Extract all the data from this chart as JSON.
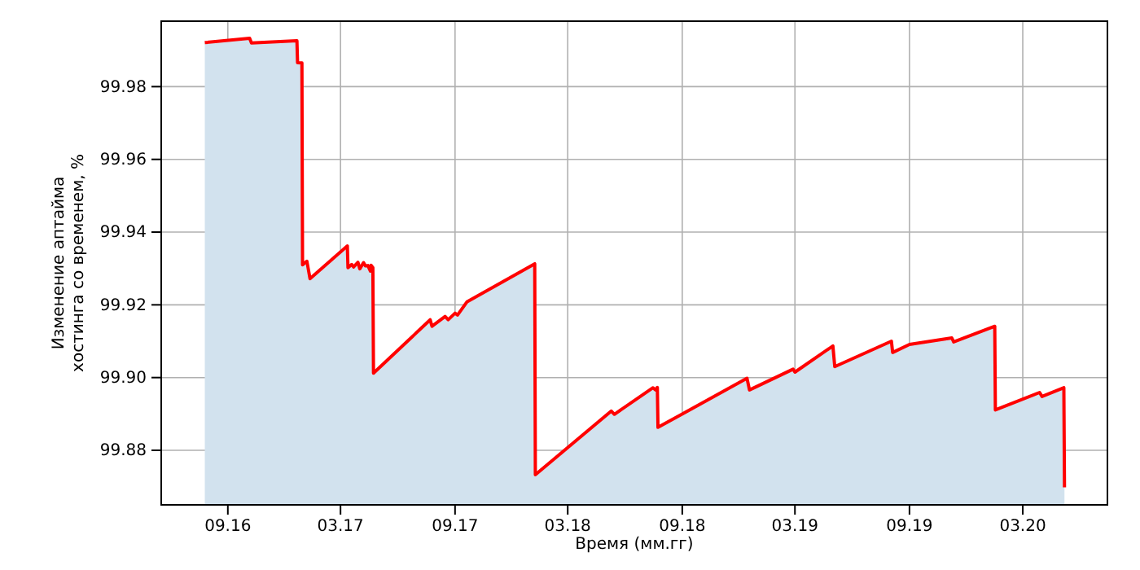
{
  "chart_data": {
    "type": "area",
    "xlabel": "Время (мм.гг)",
    "ylabel": "Изменение аптайма\nхостинга со временем, %",
    "xlim": [
      "2016-05-17",
      "2020-07-15"
    ],
    "ylim": [
      99.865,
      99.998
    ],
    "xticks": [
      {
        "value": "2016-09-01",
        "label": "09.16"
      },
      {
        "value": "2017-03-01",
        "label": "03.17"
      },
      {
        "value": "2017-09-01",
        "label": "09.17"
      },
      {
        "value": "2018-03-01",
        "label": "03.18"
      },
      {
        "value": "2018-09-01",
        "label": "09.18"
      },
      {
        "value": "2019-03-01",
        "label": "03.19"
      },
      {
        "value": "2019-09-01",
        "label": "09.19"
      },
      {
        "value": "2020-03-01",
        "label": "03.20"
      }
    ],
    "yticks": [
      {
        "value": 99.88,
        "label": "99.88"
      },
      {
        "value": 99.9,
        "label": "99.90"
      },
      {
        "value": 99.92,
        "label": "99.92"
      },
      {
        "value": 99.94,
        "label": "99.94"
      },
      {
        "value": 99.96,
        "label": "99.96"
      },
      {
        "value": 99.98,
        "label": "99.98"
      }
    ],
    "grid": true,
    "line_style": "solid",
    "x": [
      "2016-07-26",
      "2016-10-06",
      "2016-10-09",
      "2016-12-21",
      "2016-12-22",
      "2016-12-29",
      "2016-12-30",
      "2017-01-06",
      "2017-01-11",
      "2017-03-12",
      "2017-03-13",
      "2017-03-19",
      "2017-03-22",
      "2017-03-29",
      "2017-04-01",
      "2017-04-07",
      "2017-04-10",
      "2017-04-14",
      "2017-04-18",
      "2017-04-19",
      "2017-04-22",
      "2017-04-23",
      "2017-07-23",
      "2017-07-26",
      "2017-08-16",
      "2017-08-21",
      "2017-09-01",
      "2017-09-05",
      "2017-09-20",
      "2018-01-07",
      "2018-01-08",
      "2018-05-10",
      "2018-05-15",
      "2018-07-16",
      "2018-07-20",
      "2018-07-23",
      "2018-07-24",
      "2018-12-14",
      "2018-12-18",
      "2019-02-26",
      "2019-03-01",
      "2019-05-01",
      "2019-05-04",
      "2019-08-03",
      "2019-08-05",
      "2019-09-01",
      "2019-11-08",
      "2019-11-11",
      "2020-01-16",
      "2020-01-17",
      "2020-03-28",
      "2020-04-01",
      "2020-05-06",
      "2020-05-07"
    ],
    "series": [
      {
        "color": "#ff0000",
        "values": [
          99.9921,
          99.9933,
          99.992,
          99.9926,
          99.9866,
          99.9865,
          99.931,
          99.932,
          99.9272,
          99.9362,
          99.9302,
          99.9311,
          99.9304,
          99.9317,
          99.9299,
          99.9316,
          99.9307,
          99.9308,
          99.9293,
          99.9309,
          99.9302,
          99.9012,
          99.9159,
          99.9141,
          99.9168,
          99.9159,
          99.9177,
          99.9172,
          99.9208,
          99.9313,
          99.8733,
          99.8908,
          99.8899,
          99.8972,
          99.8966,
          99.8973,
          99.8863,
          99.8998,
          99.8966,
          99.9023,
          99.9015,
          99.9087,
          99.903,
          99.91,
          99.9069,
          99.9091,
          99.9109,
          99.9098,
          99.9141,
          99.8911,
          99.8959,
          99.8948,
          99.8972,
          99.8698
        ]
      }
    ]
  }
}
